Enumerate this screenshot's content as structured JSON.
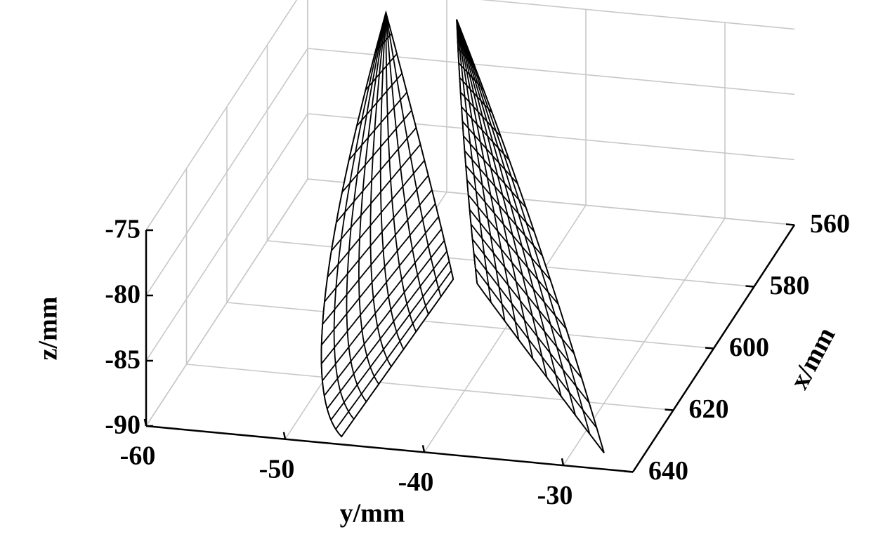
{
  "chart_data": {
    "type": "surface3d",
    "xlabel": "x/mm",
    "ylabel": "y/mm",
    "zlabel": "z/mm",
    "xlim": [
      560,
      640
    ],
    "ylim": [
      -60,
      -25
    ],
    "zlim": [
      -90,
      -75
    ],
    "xticks": [
      560,
      580,
      600,
      620,
      640
    ],
    "yticks": [
      -60,
      -50,
      -40,
      -30
    ],
    "zticks": [
      -90,
      -85,
      -80,
      -75
    ],
    "grid": true,
    "color": "#000000",
    "surfaces": [
      {
        "x": [
          [
            637.6,
            612,
            586.4
          ],
          [
            628.8,
            612.1,
            595.3
          ],
          [
            566.7,
            566.7,
            566.7
          ]
        ],
        "y": [
          [
            -46.3,
            -46,
            -45.7
          ],
          [
            -48.8,
            -47.5,
            -46.2
          ],
          [
            -53.4,
            -53.4,
            -53.4
          ]
        ],
        "z": [
          [
            -90,
            -90,
            -90
          ],
          [
            -82,
            -81,
            -80
          ],
          [
            -75,
            -75,
            -75
          ]
        ]
      },
      {
        "x": [
          [
            587,
            611,
            635
          ],
          [
            578.7,
            590,
            601.4
          ],
          [
            566.8,
            566.8,
            566.8
          ]
        ],
        "y": [
          [
            -43.9,
            -35.9,
            -27.8
          ],
          [
            -46,
            -41.9,
            -37.7
          ],
          [
            -48.3,
            -48.3,
            -48.3
          ]
        ],
        "z": [
          [
            -90,
            -90,
            -90
          ],
          [
            -82,
            -82,
            -82
          ],
          [
            -75,
            -75,
            -75
          ]
        ]
      }
    ]
  }
}
